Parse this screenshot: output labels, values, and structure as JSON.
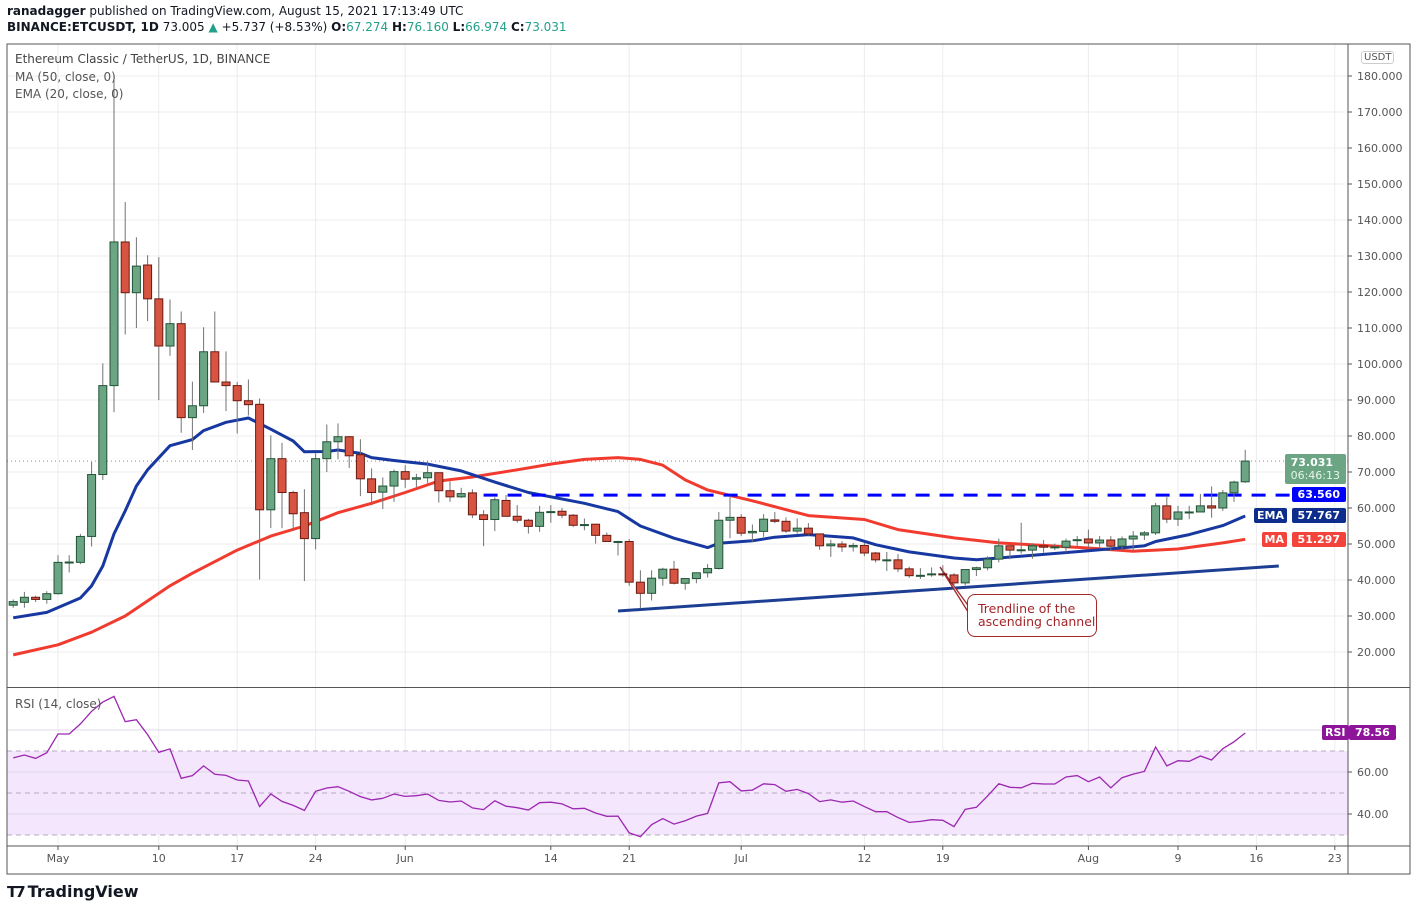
{
  "header": {
    "author": "ranadagger",
    "published_text": "published on TradingView.com, August 15, 2021 17:13:49 UTC",
    "symbol": "BINANCE:ETCUSDT, 1D",
    "last": "73.005",
    "change": "+5.737 (+8.53%)",
    "o_label": "O:",
    "o": "67.274",
    "h_label": "H:",
    "h": "76.160",
    "l_label": "L:",
    "l": "66.974",
    "c_label": "C:",
    "c": "73.031"
  },
  "legend": {
    "title": "Ethereum Classic / TetherUS, 1D, BINANCE",
    "ma": "MA (50, close, 0)",
    "ema": "EMA (20, close, 0)",
    "rsi": "RSI (14, close)"
  },
  "price_axis": {
    "currency": "USDT",
    "ticks": [
      "180.000",
      "170.000",
      "160.000",
      "150.000",
      "140.000",
      "130.000",
      "120.000",
      "110.000",
      "100.000",
      "90.000",
      "80.000",
      "70.000",
      "60.000",
      "50.000",
      "40.000",
      "30.000",
      "20.000"
    ]
  },
  "rsi_axis": {
    "ticks": [
      "60.00",
      "40.00"
    ]
  },
  "labels": {
    "last_price": "73.031",
    "countdown": "06:46:13",
    "level": "63.560",
    "ema_tag": "EMA",
    "ema_value": "57.767",
    "ma_tag": "MA",
    "ma_value": "51.297",
    "rsi_tag": "RSI",
    "rsi_value": "78.56"
  },
  "annotation": {
    "line1": "Trendline of the",
    "line2": "ascending channel"
  },
  "footer": {
    "brand": "TradingView"
  },
  "colors": {
    "up": "#6ba583",
    "down": "#d75442",
    "ema": "#1638a0",
    "ma": "#f23b2f",
    "level": "#0000ff",
    "rsi": "#9c27b0",
    "trendline": "#1c3f94"
  },
  "chart_data": {
    "type": "candlestick",
    "title": "Ethereum Classic / TetherUS, 1D, BINANCE",
    "ylim": [
      10,
      189
    ],
    "grid": true,
    "x_ticks": [
      {
        "label": "May",
        "date": "2021-05-01"
      },
      {
        "label": "10",
        "date": "2021-05-10"
      },
      {
        "label": "17",
        "date": "2021-05-17"
      },
      {
        "label": "24",
        "date": "2021-05-24"
      },
      {
        "label": "Jun",
        "date": "2021-06-01"
      },
      {
        "label": "14",
        "date": "2021-06-14"
      },
      {
        "label": "21",
        "date": "2021-06-21"
      },
      {
        "label": "Jul",
        "date": "2021-07-01"
      },
      {
        "label": "12",
        "date": "2021-07-12"
      },
      {
        "label": "19",
        "date": "2021-07-19"
      },
      {
        "label": "Aug",
        "date": "2021-08-01"
      },
      {
        "label": "9",
        "date": "2021-08-09"
      },
      {
        "label": "16",
        "date": "2021-08-16"
      },
      {
        "label": "23",
        "date": "2021-08-23"
      }
    ],
    "candles_columns": [
      "date",
      "open",
      "high",
      "low",
      "close"
    ],
    "candles": [
      [
        "2021-04-27",
        33.0,
        34.6,
        32.3,
        34.0
      ],
      [
        "2021-04-28",
        33.8,
        36.7,
        32.3,
        35.2
      ],
      [
        "2021-04-29",
        35.2,
        35.6,
        33.9,
        34.6
      ],
      [
        "2021-04-30",
        34.6,
        36.9,
        33.4,
        36.2
      ],
      [
        "2021-05-01",
        36.2,
        46.9,
        36.0,
        44.9
      ],
      [
        "2021-05-02",
        44.9,
        46.9,
        42.1,
        45.0
      ],
      [
        "2021-05-03",
        44.9,
        52.8,
        44.4,
        52.1
      ],
      [
        "2021-05-04",
        52.1,
        72.8,
        49.3,
        69.3
      ],
      [
        "2021-05-05",
        69.3,
        100.2,
        67.8,
        94.0
      ],
      [
        "2021-05-06",
        94.0,
        180.0,
        86.6,
        133.9
      ],
      [
        "2021-05-07",
        133.9,
        145.0,
        108.2,
        119.8
      ],
      [
        "2021-05-08",
        119.8,
        135.2,
        110.0,
        127.2
      ],
      [
        "2021-05-09",
        127.5,
        130.2,
        111.9,
        118.1
      ],
      [
        "2021-05-10",
        118.1,
        129.7,
        90.0,
        105.0
      ],
      [
        "2021-05-11",
        105.0,
        117.9,
        102.3,
        111.2
      ],
      [
        "2021-05-12",
        111.2,
        114.6,
        80.9,
        85.1
      ],
      [
        "2021-05-13",
        85.1,
        95.1,
        76.1,
        88.4
      ],
      [
        "2021-05-14",
        88.4,
        110.2,
        86.4,
        103.4
      ],
      [
        "2021-05-15",
        103.4,
        114.6,
        94.9,
        95.0
      ],
      [
        "2021-05-16",
        95.0,
        103.5,
        86.9,
        94.0
      ],
      [
        "2021-05-17",
        94.0,
        95.0,
        80.7,
        89.8
      ],
      [
        "2021-05-18",
        89.8,
        95.7,
        85.7,
        88.7
      ],
      [
        "2021-05-19",
        88.8,
        90.4,
        40.1,
        59.5
      ],
      [
        "2021-05-20",
        59.5,
        80.2,
        54.4,
        73.7
      ],
      [
        "2021-05-21",
        73.7,
        78.1,
        54.4,
        64.3
      ],
      [
        "2021-05-22",
        64.3,
        64.8,
        53.6,
        58.4
      ],
      [
        "2021-05-23",
        58.7,
        65.2,
        39.7,
        51.5
      ],
      [
        "2021-05-24",
        51.5,
        75.2,
        48.5,
        73.7
      ],
      [
        "2021-05-25",
        73.7,
        83.2,
        70.0,
        78.4
      ],
      [
        "2021-05-26",
        78.4,
        83.5,
        73.5,
        79.8
      ],
      [
        "2021-05-27",
        79.8,
        80.0,
        71.1,
        74.5
      ],
      [
        "2021-05-28",
        74.8,
        79.1,
        63.3,
        68.1
      ],
      [
        "2021-05-29",
        68.1,
        71.0,
        60.8,
        64.3
      ],
      [
        "2021-05-30",
        64.4,
        68.5,
        59.7,
        66.1
      ],
      [
        "2021-05-31",
        66.1,
        70.7,
        61.7,
        70.1
      ],
      [
        "2021-06-01",
        70.1,
        71.9,
        65.6,
        68.0
      ],
      [
        "2021-06-02",
        68.0,
        69.5,
        65.8,
        68.4
      ],
      [
        "2021-06-03",
        68.4,
        73.0,
        66.9,
        69.8
      ],
      [
        "2021-06-04",
        69.8,
        69.8,
        61.5,
        64.8
      ],
      [
        "2021-06-05",
        64.8,
        67.4,
        61.7,
        63.1
      ],
      [
        "2021-06-06",
        63.1,
        65.6,
        62.8,
        64.0
      ],
      [
        "2021-06-07",
        64.2,
        65.2,
        57.2,
        58.1
      ],
      [
        "2021-06-08",
        58.1,
        59.4,
        49.4,
        56.8
      ],
      [
        "2021-06-09",
        56.8,
        63.0,
        53.6,
        62.3
      ],
      [
        "2021-06-10",
        62.1,
        63.6,
        57.6,
        57.7
      ],
      [
        "2021-06-11",
        57.7,
        60.8,
        55.9,
        56.6
      ],
      [
        "2021-06-12",
        56.6,
        57.0,
        52.9,
        54.9
      ],
      [
        "2021-06-13",
        54.9,
        60.6,
        53.4,
        58.8
      ],
      [
        "2021-06-14",
        58.8,
        60.8,
        55.9,
        59.0
      ],
      [
        "2021-06-15",
        59.1,
        60.0,
        57.2,
        58.0
      ],
      [
        "2021-06-16",
        58.0,
        58.3,
        54.7,
        55.2
      ],
      [
        "2021-06-17",
        55.2,
        57.1,
        53.8,
        55.4
      ],
      [
        "2021-06-18",
        55.5,
        55.5,
        50.1,
        52.4
      ],
      [
        "2021-06-19",
        52.4,
        53.2,
        50.7,
        50.7
      ],
      [
        "2021-06-20",
        50.7,
        50.9,
        46.8,
        50.7
      ],
      [
        "2021-06-21",
        50.7,
        51.4,
        38.4,
        39.4
      ],
      [
        "2021-06-22",
        39.4,
        42.7,
        32.1,
        36.3
      ],
      [
        "2021-06-23",
        36.3,
        42.7,
        34.3,
        40.5
      ],
      [
        "2021-06-24",
        40.5,
        43.4,
        38.4,
        43.0
      ],
      [
        "2021-06-25",
        43.0,
        45.3,
        38.8,
        39.1
      ],
      [
        "2021-06-26",
        39.1,
        40.5,
        37.3,
        40.4
      ],
      [
        "2021-06-27",
        40.4,
        42.1,
        39.1,
        42.0
      ],
      [
        "2021-06-28",
        42.0,
        44.4,
        40.7,
        43.2
      ],
      [
        "2021-06-29",
        43.2,
        58.9,
        42.9,
        56.6
      ],
      [
        "2021-06-30",
        56.6,
        63.4,
        51.6,
        57.4
      ],
      [
        "2021-07-01",
        57.4,
        58.3,
        52.2,
        53.0
      ],
      [
        "2021-07-02",
        53.1,
        55.4,
        50.6,
        53.5
      ],
      [
        "2021-07-03",
        53.5,
        58.3,
        52.0,
        56.9
      ],
      [
        "2021-07-04",
        56.7,
        58.9,
        55.8,
        56.3
      ],
      [
        "2021-07-05",
        56.3,
        57.4,
        53.1,
        53.6
      ],
      [
        "2021-07-06",
        53.6,
        57.1,
        52.9,
        54.4
      ],
      [
        "2021-07-07",
        54.4,
        55.8,
        52.4,
        52.8
      ],
      [
        "2021-07-08",
        52.8,
        52.8,
        48.4,
        49.5
      ],
      [
        "2021-07-09",
        49.5,
        51.2,
        46.4,
        50.0
      ],
      [
        "2021-07-10",
        50.0,
        50.8,
        47.8,
        49.2
      ],
      [
        "2021-07-11",
        49.2,
        50.3,
        47.9,
        49.6
      ],
      [
        "2021-07-12",
        49.6,
        50.3,
        46.6,
        47.5
      ],
      [
        "2021-07-13",
        47.5,
        47.8,
        44.9,
        45.6
      ],
      [
        "2021-07-14",
        45.6,
        47.8,
        42.5,
        45.6
      ],
      [
        "2021-07-15",
        45.6,
        47.2,
        42.2,
        43.1
      ],
      [
        "2021-07-16",
        43.1,
        43.7,
        40.6,
        41.2
      ],
      [
        "2021-07-17",
        41.2,
        43.3,
        40.3,
        41.3
      ],
      [
        "2021-07-18",
        41.5,
        43.5,
        40.9,
        41.7
      ],
      [
        "2021-07-19",
        41.7,
        44.1,
        40.9,
        41.5
      ],
      [
        "2021-07-20",
        41.4,
        41.9,
        37.6,
        39.2
      ],
      [
        "2021-07-21",
        39.2,
        42.9,
        38.5,
        42.9
      ],
      [
        "2021-07-22",
        42.9,
        43.7,
        41.1,
        43.4
      ],
      [
        "2021-07-23",
        43.4,
        46.6,
        42.7,
        45.8
      ],
      [
        "2021-07-24",
        45.8,
        51.5,
        44.9,
        49.5
      ],
      [
        "2021-07-25",
        49.5,
        49.5,
        45.8,
        48.3
      ],
      [
        "2021-07-26",
        48.4,
        55.9,
        47.3,
        48.4
      ],
      [
        "2021-07-27",
        48.3,
        50.2,
        45.9,
        49.5
      ],
      [
        "2021-07-28",
        49.5,
        51.1,
        47.6,
        49.1
      ],
      [
        "2021-07-29",
        49.2,
        50.1,
        48.3,
        49.2
      ],
      [
        "2021-07-30",
        49.1,
        51.5,
        47.6,
        50.8
      ],
      [
        "2021-07-31",
        51.0,
        52.2,
        49.4,
        51.2
      ],
      [
        "2021-08-01",
        51.4,
        54.0,
        48.9,
        50.3
      ],
      [
        "2021-08-02",
        50.3,
        52.2,
        49.1,
        51.1
      ],
      [
        "2021-08-03",
        51.1,
        52.2,
        48.1,
        49.4
      ],
      [
        "2021-08-04",
        49.4,
        52.1,
        48.1,
        51.4
      ],
      [
        "2021-08-05",
        51.4,
        53.6,
        48.1,
        52.2
      ],
      [
        "2021-08-06",
        52.5,
        53.6,
        51.1,
        53.1
      ],
      [
        "2021-08-07",
        53.1,
        61.4,
        52.5,
        60.6
      ],
      [
        "2021-08-08",
        60.6,
        63.4,
        55.8,
        56.9
      ],
      [
        "2021-08-09",
        56.9,
        60.6,
        55.0,
        58.9
      ],
      [
        "2021-08-10",
        58.9,
        60.6,
        56.9,
        58.9
      ],
      [
        "2021-08-11",
        58.9,
        63.9,
        58.8,
        60.6
      ],
      [
        "2021-08-12",
        60.6,
        66.0,
        57.3,
        60.0
      ],
      [
        "2021-08-13",
        60.0,
        65.0,
        59.2,
        64.2
      ],
      [
        "2021-08-14",
        64.2,
        67.6,
        61.7,
        67.2
      ],
      [
        "2021-08-15",
        67.274,
        76.16,
        66.974,
        73.031
      ]
    ],
    "ema20": [
      [
        "2021-04-27",
        29.5
      ],
      [
        "2021-04-30",
        31
      ],
      [
        "2021-05-03",
        35
      ],
      [
        "2021-05-04",
        38.4
      ],
      [
        "2021-05-05",
        43.9
      ],
      [
        "2021-05-06",
        52.8
      ],
      [
        "2021-05-07",
        59.2
      ],
      [
        "2021-05-08",
        66.1
      ],
      [
        "2021-05-09",
        70.6
      ],
      [
        "2021-05-11",
        77.3
      ],
      [
        "2021-05-13",
        79
      ],
      [
        "2021-05-14",
        81.5
      ],
      [
        "2021-05-16",
        83.8
      ],
      [
        "2021-05-18",
        85
      ],
      [
        "2021-05-20",
        81.9
      ],
      [
        "2021-05-22",
        78.6
      ],
      [
        "2021-05-23",
        75.6
      ],
      [
        "2021-05-25",
        75.7
      ],
      [
        "2021-05-26",
        76.1
      ],
      [
        "2021-05-28",
        75.2
      ],
      [
        "2021-05-29",
        74
      ],
      [
        "2021-05-31",
        73.2
      ],
      [
        "2021-06-03",
        72.2
      ],
      [
        "2021-06-06",
        70.3
      ],
      [
        "2021-06-09",
        67.2
      ],
      [
        "2021-06-12",
        64.3
      ],
      [
        "2021-06-17",
        61.3
      ],
      [
        "2021-06-20",
        59
      ],
      [
        "2021-06-22",
        55
      ],
      [
        "2021-06-25",
        51.6
      ],
      [
        "2021-06-28",
        49
      ],
      [
        "2021-06-29",
        50.2
      ],
      [
        "2021-07-02",
        50.9
      ],
      [
        "2021-07-04",
        51.9
      ],
      [
        "2021-07-07",
        52.6
      ],
      [
        "2021-07-11",
        51.7
      ],
      [
        "2021-07-13",
        49.8
      ],
      [
        "2021-07-16",
        47.8
      ],
      [
        "2021-07-20",
        46.1
      ],
      [
        "2021-07-22",
        45.6
      ],
      [
        "2021-07-24",
        46.1
      ],
      [
        "2021-08-01",
        48.1
      ],
      [
        "2021-08-06",
        49.5
      ],
      [
        "2021-08-07",
        50.7
      ],
      [
        "2021-08-10",
        52.6
      ],
      [
        "2021-08-13",
        55.1
      ],
      [
        "2021-08-15",
        57.767
      ]
    ],
    "ma50": [
      [
        "2021-04-27",
        19.2
      ],
      [
        "2021-05-01",
        22
      ],
      [
        "2021-05-04",
        25.5
      ],
      [
        "2021-05-07",
        30
      ],
      [
        "2021-05-11",
        38.4
      ],
      [
        "2021-05-13",
        41.9
      ],
      [
        "2021-05-17",
        48.3
      ],
      [
        "2021-05-20",
        52.2
      ],
      [
        "2021-05-23",
        55
      ],
      [
        "2021-05-26",
        58.7
      ],
      [
        "2021-05-29",
        61.3
      ],
      [
        "2021-06-01",
        64.3
      ],
      [
        "2021-06-04",
        67.5
      ],
      [
        "2021-06-07",
        68.6
      ],
      [
        "2021-06-11",
        70.6
      ],
      [
        "2021-06-14",
        72.2
      ],
      [
        "2021-06-17",
        73.5
      ],
      [
        "2021-06-20",
        74
      ],
      [
        "2021-06-22",
        73.5
      ],
      [
        "2021-06-24",
        71.9
      ],
      [
        "2021-06-26",
        67.8
      ],
      [
        "2021-06-28",
        65
      ],
      [
        "2021-07-02",
        62
      ],
      [
        "2021-07-07",
        57.9
      ],
      [
        "2021-07-12",
        56.8
      ],
      [
        "2021-07-15",
        54
      ],
      [
        "2021-07-20",
        51.7
      ],
      [
        "2021-07-24",
        50.3
      ],
      [
        "2021-08-01",
        48.9
      ],
      [
        "2021-08-05",
        48
      ],
      [
        "2021-08-09",
        48.6
      ],
      [
        "2021-08-13",
        50.3
      ],
      [
        "2021-08-15",
        51.297
      ]
    ],
    "trendline": [
      [
        "2021-06-20",
        31.4
      ],
      [
        "2021-08-18",
        43.9
      ]
    ],
    "level": {
      "value": 63.56,
      "from": "2021-06-08"
    },
    "rsi": {
      "ylim": [
        20,
        95
      ],
      "overbought": 70,
      "middle": 50,
      "oversold": 30,
      "values": [
        66.7,
        68.1,
        66.5,
        69.2,
        78.1,
        78.1,
        82.9,
        88.9,
        93.3,
        96.0,
        84.0,
        84.9,
        77.8,
        69.4,
        71.0,
        57.0,
        58.3,
        62.9,
        58.9,
        58.4,
        56.2,
        55.7,
        43.5,
        49.5,
        46.0,
        44.1,
        41.7,
        50.8,
        52.4,
        53.0,
        50.8,
        48.3,
        46.7,
        47.5,
        49.5,
        48.4,
        48.7,
        49.5,
        46.5,
        45.7,
        46.2,
        42.9,
        42.1,
        46.3,
        43.7,
        43.0,
        41.9,
        45.4,
        45.6,
        44.8,
        42.5,
        42.7,
        40.5,
        38.9,
        39.0,
        31.0,
        29.2,
        34.9,
        37.8,
        35.2,
        36.8,
        39.0,
        40.3,
        54.8,
        55.4,
        51.0,
        51.4,
        54.4,
        54.0,
        50.8,
        51.7,
        49.7,
        45.9,
        46.7,
        45.6,
        46.2,
        43.5,
        41.1,
        41.1,
        38.3,
        36.0,
        36.5,
        37.3,
        37.0,
        34.0,
        42.2,
        43.2,
        48.6,
        54.4,
        52.7,
        52.5,
        54.6,
        54.3,
        54.3,
        57.6,
        58.3,
        55.4,
        57.6,
        52.5,
        57.3,
        59.0,
        60.3,
        71.9,
        62.9,
        65.4,
        65.1,
        67.6,
        65.7,
        71.1,
        74.4,
        78.56
      ]
    }
  }
}
